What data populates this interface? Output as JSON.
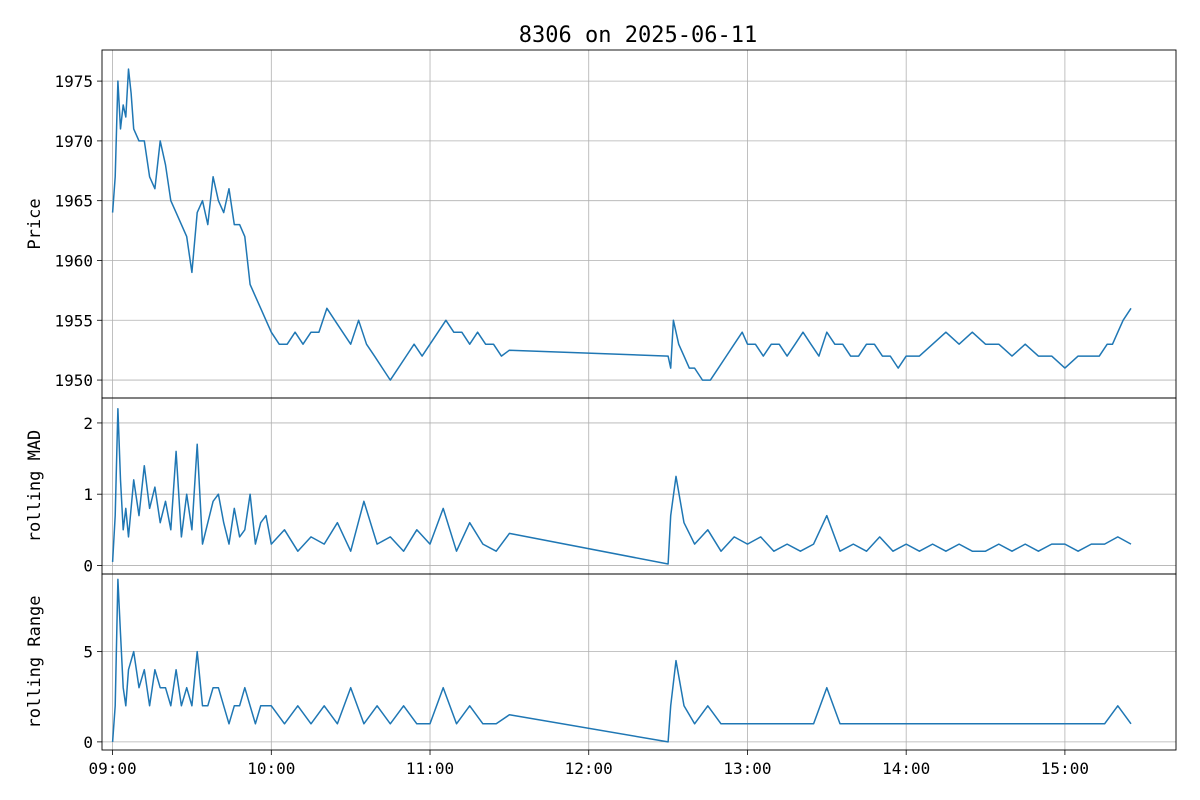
{
  "chart_data": {
    "type": "line",
    "title": "8306 on 2025-06-11",
    "line_color": "#1f77b4",
    "grid": true,
    "x_axis": {
      "ticks": [
        "09:00",
        "10:00",
        "11:00",
        "12:00",
        "13:00",
        "14:00",
        "15:00"
      ],
      "range": [
        "08:56",
        "15:42"
      ]
    },
    "panels": [
      {
        "id": "price",
        "ylabel": "Price",
        "ylim": [
          1948.5,
          1977.6
        ],
        "yticks": [
          1950,
          1955,
          1960,
          1965,
          1970,
          1975
        ],
        "series": [
          {
            "x": [
              "09:00",
              "09:01",
              "09:02",
              "09:03",
              "09:04",
              "09:05",
              "09:06",
              "09:07",
              "09:08",
              "09:10",
              "09:12",
              "09:14",
              "09:16",
              "09:18",
              "09:20",
              "09:22",
              "09:24",
              "09:26",
              "09:28",
              "09:30",
              "09:32",
              "09:34",
              "09:36",
              "09:38",
              "09:40",
              "09:42",
              "09:44",
              "09:46",
              "09:48",
              "09:50",
              "09:52",
              "09:54",
              "09:56",
              "09:58",
              "10:00",
              "10:03",
              "10:06",
              "10:09",
              "10:12",
              "10:15",
              "10:18",
              "10:21",
              "10:24",
              "10:27",
              "10:30",
              "10:33",
              "10:36",
              "10:39",
              "10:42",
              "10:45",
              "10:48",
              "10:51",
              "10:54",
              "10:57",
              "11:00",
              "11:03",
              "11:06",
              "11:09",
              "11:12",
              "11:15",
              "11:18",
              "11:21",
              "11:24",
              "11:27",
              "11:30",
              "12:30",
              "12:31",
              "12:32",
              "12:34",
              "12:36",
              "12:38",
              "12:40",
              "12:43",
              "12:46",
              "12:49",
              "12:52",
              "12:55",
              "12:58",
              "13:00",
              "13:03",
              "13:06",
              "13:09",
              "13:12",
              "13:15",
              "13:18",
              "13:21",
              "13:24",
              "13:27",
              "13:30",
              "13:33",
              "13:36",
              "13:39",
              "13:42",
              "13:45",
              "13:48",
              "13:51",
              "13:54",
              "13:57",
              "14:00",
              "14:05",
              "14:10",
              "14:15",
              "14:20",
              "14:25",
              "14:30",
              "14:35",
              "14:40",
              "14:45",
              "14:50",
              "14:55",
              "15:00",
              "15:05",
              "15:10",
              "15:13",
              "15:16",
              "15:18",
              "15:20",
              "15:22",
              "15:25"
            ],
            "y": [
              1964,
              1967,
              1975,
              1971,
              1973,
              1972,
              1976,
              1974,
              1971,
              1970,
              1970,
              1967,
              1966,
              1970,
              1968,
              1965,
              1964,
              1963,
              1962,
              1959,
              1964,
              1965,
              1963,
              1967,
              1965,
              1964,
              1966,
              1963,
              1963,
              1962,
              1958,
              1957,
              1956,
              1955,
              1954,
              1953,
              1953,
              1954,
              1953,
              1954,
              1954,
              1956,
              1955,
              1954,
              1953,
              1955,
              1953,
              1952,
              1951,
              1950,
              1951,
              1952,
              1953,
              1952,
              1953,
              1954,
              1955,
              1954,
              1954,
              1953,
              1954,
              1953,
              1953,
              1952,
              1952.5,
              1952,
              1951,
              1955,
              1953,
              1952,
              1951,
              1951,
              1950,
              1950,
              1951,
              1952,
              1953,
              1954,
              1953,
              1953,
              1952,
              1953,
              1953,
              1952,
              1953,
              1954,
              1953,
              1952,
              1954,
              1953,
              1953,
              1952,
              1952,
              1953,
              1953,
              1952,
              1952,
              1951,
              1952,
              1952,
              1953,
              1954,
              1953,
              1954,
              1953,
              1953,
              1952,
              1953,
              1952,
              1952,
              1951,
              1952,
              1952,
              1952,
              1953,
              1953,
              1954,
              1955,
              1956
            ]
          }
        ]
      },
      {
        "id": "mad",
        "ylabel": "rolling MAD",
        "ylim": [
          -0.12,
          2.35
        ],
        "yticks": [
          0,
          1,
          2
        ],
        "series": [
          {
            "x": [
              "09:00",
              "09:01",
              "09:02",
              "09:03",
              "09:04",
              "09:05",
              "09:06",
              "09:08",
              "09:10",
              "09:12",
              "09:14",
              "09:16",
              "09:18",
              "09:20",
              "09:22",
              "09:24",
              "09:26",
              "09:28",
              "09:30",
              "09:32",
              "09:34",
              "09:36",
              "09:38",
              "09:40",
              "09:42",
              "09:44",
              "09:46",
              "09:48",
              "09:50",
              "09:52",
              "09:54",
              "09:56",
              "09:58",
              "10:00",
              "10:05",
              "10:10",
              "10:15",
              "10:20",
              "10:25",
              "10:30",
              "10:35",
              "10:40",
              "10:45",
              "10:50",
              "10:55",
              "11:00",
              "11:05",
              "11:10",
              "11:15",
              "11:20",
              "11:25",
              "11:30",
              "12:30",
              "12:31",
              "12:33",
              "12:36",
              "12:40",
              "12:45",
              "12:50",
              "12:55",
              "13:00",
              "13:05",
              "13:10",
              "13:15",
              "13:20",
              "13:25",
              "13:30",
              "13:35",
              "13:40",
              "13:45",
              "13:50",
              "13:55",
              "14:00",
              "14:05",
              "14:10",
              "14:15",
              "14:20",
              "14:25",
              "14:30",
              "14:35",
              "14:40",
              "14:45",
              "14:50",
              "14:55",
              "15:00",
              "15:05",
              "15:10",
              "15:15",
              "15:20",
              "15:25"
            ],
            "y": [
              0.05,
              0.7,
              2.2,
              1.2,
              0.5,
              0.8,
              0.4,
              1.2,
              0.7,
              1.4,
              0.8,
              1.1,
              0.6,
              0.9,
              0.5,
              1.6,
              0.4,
              1.0,
              0.5,
              1.7,
              0.3,
              0.6,
              0.9,
              1.0,
              0.6,
              0.3,
              0.8,
              0.4,
              0.5,
              1.0,
              0.3,
              0.6,
              0.7,
              0.3,
              0.5,
              0.2,
              0.4,
              0.3,
              0.6,
              0.2,
              0.9,
              0.3,
              0.4,
              0.2,
              0.5,
              0.3,
              0.8,
              0.2,
              0.6,
              0.3,
              0.2,
              0.45,
              0.02,
              0.7,
              1.25,
              0.6,
              0.3,
              0.5,
              0.2,
              0.4,
              0.3,
              0.4,
              0.2,
              0.3,
              0.2,
              0.3,
              0.7,
              0.2,
              0.3,
              0.2,
              0.4,
              0.2,
              0.3,
              0.2,
              0.3,
              0.2,
              0.3,
              0.2,
              0.2,
              0.3,
              0.2,
              0.3,
              0.2,
              0.3,
              0.3,
              0.2,
              0.3,
              0.3,
              0.4,
              0.3
            ]
          }
        ]
      },
      {
        "id": "range",
        "ylabel": "rolling Range",
        "ylim": [
          -0.45,
          9.3
        ],
        "yticks": [
          0,
          5
        ],
        "series": [
          {
            "x": [
              "09:00",
              "09:01",
              "09:02",
              "09:03",
              "09:04",
              "09:05",
              "09:06",
              "09:08",
              "09:10",
              "09:12",
              "09:14",
              "09:16",
              "09:18",
              "09:20",
              "09:22",
              "09:24",
              "09:26",
              "09:28",
              "09:30",
              "09:32",
              "09:34",
              "09:36",
              "09:38",
              "09:40",
              "09:42",
              "09:44",
              "09:46",
              "09:48",
              "09:50",
              "09:52",
              "09:54",
              "09:56",
              "09:58",
              "10:00",
              "10:05",
              "10:10",
              "10:15",
              "10:20",
              "10:25",
              "10:30",
              "10:35",
              "10:40",
              "10:45",
              "10:50",
              "10:55",
              "11:00",
              "11:05",
              "11:10",
              "11:15",
              "11:20",
              "11:25",
              "11:30",
              "12:30",
              "12:31",
              "12:33",
              "12:36",
              "12:40",
              "12:45",
              "12:50",
              "12:55",
              "13:00",
              "13:05",
              "13:10",
              "13:15",
              "13:20",
              "13:25",
              "13:30",
              "13:35",
              "13:40",
              "13:45",
              "13:50",
              "13:55",
              "14:00",
              "14:05",
              "14:10",
              "14:15",
              "14:20",
              "14:25",
              "14:30",
              "14:35",
              "14:40",
              "14:45",
              "14:50",
              "14:55",
              "15:00",
              "15:05",
              "15:10",
              "15:15",
              "15:20",
              "15:25"
            ],
            "y": [
              0,
              2,
              9,
              6,
              3,
              2,
              4,
              5,
              3,
              4,
              2,
              4,
              3,
              3,
              2,
              4,
              2,
              3,
              2,
              5,
              2,
              2,
              3,
              3,
              2,
              1,
              2,
              2,
              3,
              2,
              1,
              2,
              2,
              2,
              1,
              2,
              1,
              2,
              1,
              3,
              1,
              2,
              1,
              2,
              1,
              1,
              3,
              1,
              2,
              1,
              1,
              1.5,
              0,
              2,
              4.5,
              2,
              1,
              2,
              1,
              1,
              1,
              1,
              1,
              1,
              1,
              1,
              3,
              1,
              1,
              1,
              1,
              1,
              1,
              1,
              1,
              1,
              1,
              1,
              1,
              1,
              1,
              1,
              1,
              1,
              1,
              1,
              1,
              1,
              2,
              1
            ]
          }
        ]
      }
    ]
  }
}
